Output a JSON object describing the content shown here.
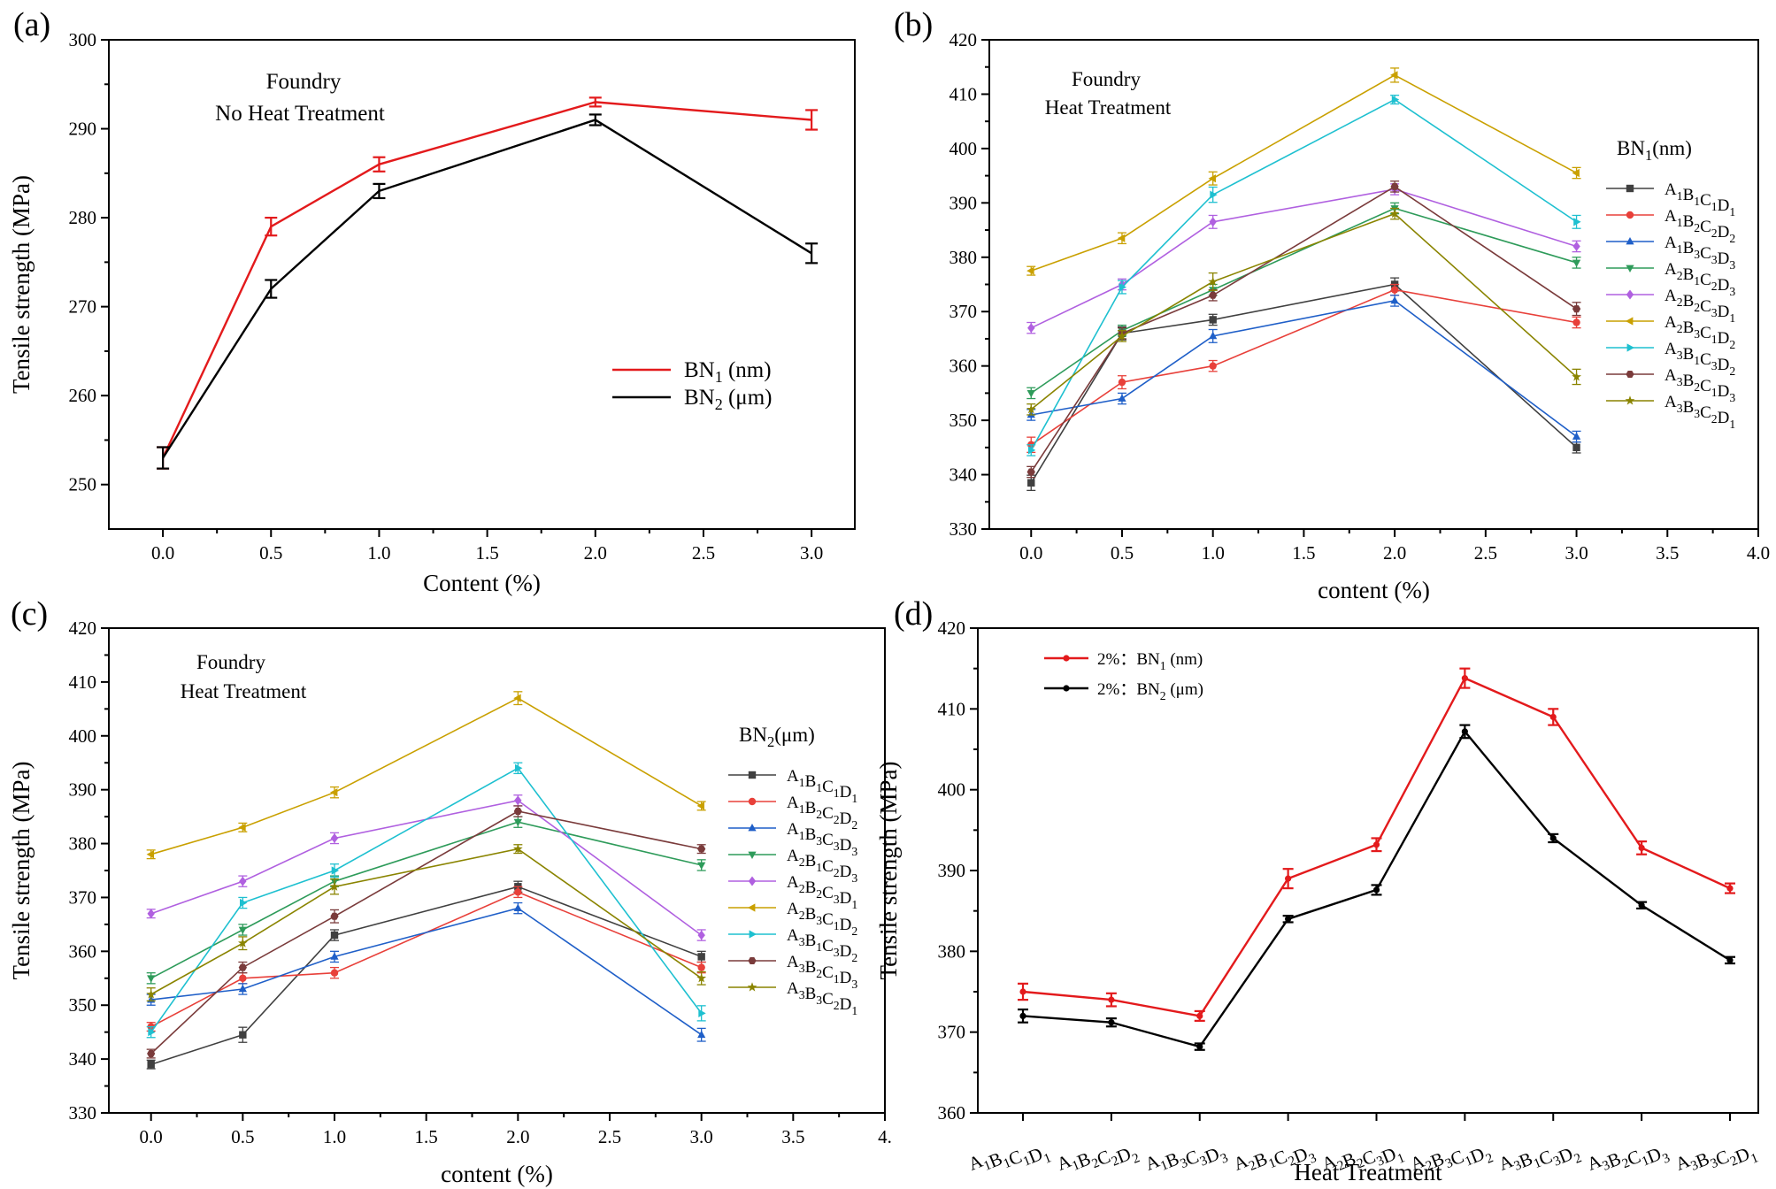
{
  "chart_data": [
    {
      "panel": "(a)",
      "type": "line",
      "annotation": [
        "Foundry",
        "No Heat Treatment"
      ],
      "xlabel": "Content (%)",
      "ylabel": "Tensile strength (MPa)",
      "xlim": [
        -0.25,
        3.2
      ],
      "ylim": [
        245,
        300
      ],
      "xticks": [
        "0.0",
        "0.5",
        "1.0",
        "1.5",
        "2.0",
        "2.5",
        "3.0"
      ],
      "yticks": [
        "250",
        "260",
        "270",
        "280",
        "290",
        "300"
      ],
      "legend_position": "lower-right",
      "x": [
        0,
        0.5,
        1.0,
        2.0,
        3.0
      ],
      "series": [
        {
          "name": "BN",
          "sub": "1",
          "suffix": "  (nm)",
          "color": "#e31a1c",
          "values": [
            253,
            279,
            286,
            293,
            291
          ],
          "errors": [
            1.2,
            1.0,
            0.8,
            0.5,
            1.1
          ]
        },
        {
          "name": "BN",
          "sub": "2",
          "suffix": "  (μm)",
          "color": "#000000",
          "values": [
            253,
            272,
            283,
            291,
            276
          ],
          "errors": [
            1.2,
            1.0,
            0.8,
            0.6,
            1.1
          ]
        }
      ]
    },
    {
      "panel": "(b)",
      "type": "line",
      "annotation": [
        "Foundry",
        "Heat Treatment"
      ],
      "xlabel": "content (%)",
      "ylabel": "",
      "xlim": [
        -0.23,
        4.0
      ],
      "ylim": [
        330,
        420
      ],
      "xticks": [
        "0.0",
        "0.5",
        "1.0",
        "1.5",
        "2.0",
        "2.5",
        "3.0",
        "3.5",
        "4.0"
      ],
      "yticks": [
        "330",
        "340",
        "350",
        "360",
        "370",
        "380",
        "390",
        "400",
        "410",
        "420"
      ],
      "legend_title": "BN",
      "legend_title_sub": "1",
      "legend_title_suffix": "(nm)",
      "legend_position": "right",
      "x": [
        0,
        0.5,
        1.0,
        2.0,
        3.0
      ],
      "series": [
        {
          "name": "A1B1C1D1",
          "color": "#404040",
          "marker": "square",
          "values": [
            338.5,
            366,
            368.5,
            375,
            345
          ],
          "errors": [
            1.4,
            1.2,
            1.0,
            1.2,
            1.0
          ]
        },
        {
          "name": "A1B2C2D2",
          "color": "#e8403a",
          "marker": "circle",
          "values": [
            345.5,
            357,
            360,
            374,
            368
          ],
          "errors": [
            1.4,
            1.2,
            1.0,
            1.0,
            1.0
          ]
        },
        {
          "name": "A1B3C3D3",
          "color": "#1f5fc8",
          "marker": "triangle-up",
          "values": [
            351,
            354,
            365.5,
            372,
            347
          ],
          "errors": [
            1.0,
            1.0,
            1.2,
            1.0,
            1.0
          ]
        },
        {
          "name": "A2B1C2D3",
          "color": "#2e9b5a",
          "marker": "triangle-down",
          "values": [
            355,
            366.5,
            374,
            389,
            379
          ],
          "errors": [
            1.0,
            1.0,
            1.0,
            1.0,
            1.0
          ]
        },
        {
          "name": "A2B2C3D1",
          "color": "#b060e0",
          "marker": "diamond",
          "values": [
            367,
            375,
            386.5,
            392.5,
            382
          ],
          "errors": [
            1.0,
            1.0,
            1.2,
            1.0,
            1.0
          ]
        },
        {
          "name": "A2B3C1D2",
          "color": "#c9a000",
          "marker": "triangle-left",
          "values": [
            377.5,
            383.5,
            394.5,
            413.5,
            395.5
          ],
          "errors": [
            0.8,
            1.0,
            1.2,
            1.3,
            1.0
          ]
        },
        {
          "name": "A3B1C3D2",
          "color": "#1ec0d0",
          "marker": "triangle-right",
          "values": [
            344.5,
            374.5,
            391.5,
            409,
            386.5
          ],
          "errors": [
            1.0,
            1.2,
            1.4,
            0.8,
            1.2
          ]
        },
        {
          "name": "A3B2C1D3",
          "color": "#7a3b3b",
          "marker": "hexagon",
          "values": [
            340.5,
            366,
            373,
            393,
            370.5
          ],
          "errors": [
            1.0,
            1.0,
            1.0,
            1.0,
            1.2
          ]
        },
        {
          "name": "A3B3C2D1",
          "color": "#8a8400",
          "marker": "star",
          "values": [
            352,
            365.5,
            375.5,
            388,
            358
          ],
          "errors": [
            1.0,
            1.0,
            1.6,
            1.0,
            1.4
          ]
        }
      ]
    },
    {
      "panel": "(c)",
      "type": "line",
      "annotation": [
        "Foundry",
        "Heat Treatment"
      ],
      "xlabel": "content (%)",
      "ylabel": "Tensile strength (MPa)",
      "xlim": [
        -0.23,
        4.0
      ],
      "ylim": [
        330,
        420
      ],
      "xticks": [
        "0.0",
        "0.5",
        "1.0",
        "1.5",
        "2.0",
        "2.5",
        "3.0",
        "3.5",
        "4."
      ],
      "yticks": [
        "330",
        "340",
        "350",
        "360",
        "370",
        "380",
        "390",
        "400",
        "410",
        "420"
      ],
      "legend_title": "BN",
      "legend_title_sub": "2",
      "legend_title_suffix": "(μm)",
      "legend_position": "right",
      "x": [
        0,
        0.5,
        1.0,
        2.0,
        3.0
      ],
      "series": [
        {
          "name": "A1B1C1D1",
          "color": "#404040",
          "marker": "square",
          "values": [
            339,
            344.5,
            363,
            372,
            359
          ],
          "errors": [
            0.8,
            1.4,
            1.0,
            1.0,
            1.0
          ]
        },
        {
          "name": "A1B2C2D2",
          "color": "#e8403a",
          "marker": "circle",
          "values": [
            346,
            355,
            356,
            371,
            357
          ],
          "errors": [
            0.8,
            1.0,
            1.0,
            1.0,
            1.0
          ]
        },
        {
          "name": "A1B3C3D3",
          "color": "#1f5fc8",
          "marker": "triangle-up",
          "values": [
            351,
            353,
            359,
            368,
            344.5
          ],
          "errors": [
            1.0,
            1.0,
            1.0,
            1.0,
            1.2
          ]
        },
        {
          "name": "A2B1C2D3",
          "color": "#2e9b5a",
          "marker": "triangle-down",
          "values": [
            355,
            364,
            373,
            384,
            376
          ],
          "errors": [
            1.0,
            1.0,
            1.0,
            1.0,
            1.0
          ]
        },
        {
          "name": "A2B2C3D1",
          "color": "#b060e0",
          "marker": "diamond",
          "values": [
            367,
            373,
            381,
            388,
            363
          ],
          "errors": [
            0.8,
            1.0,
            1.0,
            1.0,
            1.0
          ]
        },
        {
          "name": "A2B3C1D2",
          "color": "#c9a000",
          "marker": "triangle-left",
          "values": [
            378,
            383,
            389.5,
            407,
            387
          ],
          "errors": [
            0.8,
            0.8,
            1.0,
            1.2,
            0.8
          ]
        },
        {
          "name": "A3B1C3D2",
          "color": "#1ec0d0",
          "marker": "triangle-right",
          "values": [
            345,
            369,
            375,
            394,
            348.5
          ],
          "errors": [
            1.0,
            1.0,
            1.2,
            1.0,
            1.4
          ]
        },
        {
          "name": "A3B2C1D3",
          "color": "#7a3b3b",
          "marker": "hexagon",
          "values": [
            341,
            357,
            366.5,
            386,
            379
          ],
          "errors": [
            0.8,
            1.0,
            1.2,
            1.0,
            0.8
          ]
        },
        {
          "name": "A3B3C2D1",
          "color": "#8a8400",
          "marker": "star",
          "values": [
            352,
            361.5,
            372,
            379,
            355
          ],
          "errors": [
            1.2,
            1.2,
            1.4,
            0.8,
            1.2
          ]
        }
      ]
    },
    {
      "panel": "(d)",
      "type": "line",
      "xlabel": "Heat Treatment",
      "ylabel": "Tensile strength (MPa)",
      "ylim": [
        360,
        420
      ],
      "yticks": [
        "360",
        "370",
        "380",
        "390",
        "400",
        "410",
        "420"
      ],
      "categories": [
        "A1B1C1D1",
        "A1B2C2D2",
        "A1B3C3D3",
        "A2B1C2D3",
        "A2B2C3D1",
        "A2B3C1D2",
        "A3B1C3D2",
        "A3B2C1D3",
        "A3B3C2D1"
      ],
      "legend_position": "top-left",
      "series": [
        {
          "name": "2%：BN",
          "sub": "1",
          "suffix": " (nm)",
          "color": "#e31a1c",
          "values": [
            375,
            374,
            372,
            389,
            393.2,
            413.8,
            409,
            392.8,
            387.8
          ],
          "errors": [
            1.0,
            0.8,
            0.6,
            1.2,
            0.8,
            1.2,
            1.0,
            0.8,
            0.6
          ]
        },
        {
          "name": "2%：BN",
          "sub": "2",
          "suffix": " (μm)",
          "color": "#000000",
          "values": [
            372,
            371.2,
            368.2,
            384,
            387.6,
            407.2,
            394,
            385.7,
            378.9
          ],
          "errors": [
            0.8,
            0.5,
            0.4,
            0.4,
            0.6,
            0.8,
            0.5,
            0.4,
            0.4
          ]
        }
      ]
    }
  ]
}
